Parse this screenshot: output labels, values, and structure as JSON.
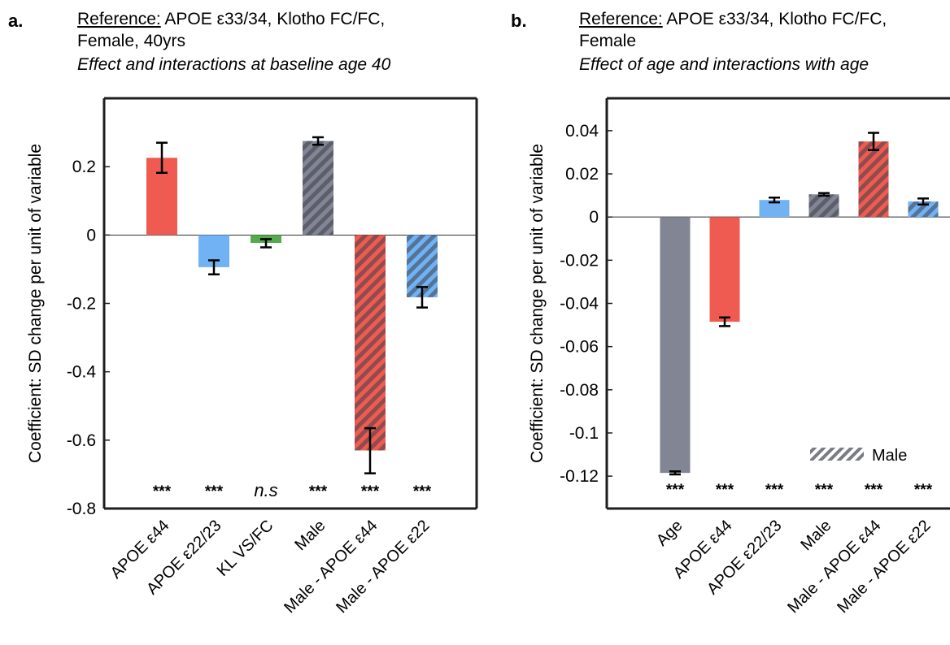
{
  "chart_data": [
    {
      "type": "bar",
      "panel_label": "a.",
      "reference_key": "Reference:",
      "reference_text_line1": "APOE ε33/34, Klotho FC/FC,",
      "reference_text_line2": "Female, 40yrs",
      "subtitle": "Effect and interactions at baseline age 40",
      "ylabel": "Coefficient: SD change per unit of variable",
      "ylim": [
        -0.8,
        0.4
      ],
      "yticks": [
        0.2,
        0,
        -0.2,
        -0.4,
        -0.6,
        -0.8
      ],
      "ytick_labels": [
        "0.2",
        "0",
        "-0.2",
        "-0.4",
        "-0.6",
        "-0.8"
      ],
      "categories": [
        "APOE ε44",
        "APOE ε22/23",
        "KL VS/FC",
        "Male",
        "Male - APOE ε44",
        "Male - APOE ε22"
      ],
      "values": [
        0.226,
        -0.094,
        -0.023,
        0.275,
        -0.63,
        -0.182
      ],
      "error_low": [
        0.182,
        -0.115,
        -0.036,
        0.264,
        -0.697,
        -0.212
      ],
      "error_high": [
        0.27,
        -0.074,
        -0.012,
        0.286,
        -0.565,
        -0.152
      ],
      "colors": [
        "#ef5b51",
        "#70b2f4",
        "#57a94e",
        "#818594",
        "#ef5b51",
        "#70b2f4"
      ],
      "hatched": [
        false,
        false,
        false,
        true,
        true,
        true
      ],
      "significance": [
        "***",
        "***",
        "n.s",
        "***",
        "***",
        "***"
      ]
    },
    {
      "type": "bar",
      "panel_label": "b.",
      "reference_key": "Reference:",
      "reference_text_line1": "APOE ε33/34, Klotho FC/FC,",
      "reference_text_line2": "Female",
      "subtitle": "Effect of age and interactions with age",
      "ylabel": "Coefficient: SD change per unit of variable",
      "ylim": [
        -0.135,
        0.055
      ],
      "yticks": [
        0.04,
        0.02,
        0,
        -0.02,
        -0.04,
        -0.06,
        -0.08,
        -0.1,
        -0.12
      ],
      "ytick_labels": [
        "0.04",
        "0.02",
        "0",
        "-0.02",
        "-0.04",
        "-0.06",
        "-0.08",
        "-0.1",
        "-0.12"
      ],
      "categories": [
        "Age",
        "APOE ε44",
        "APOE ε22/23",
        "Male",
        "Male - APOE ε44",
        "Male - APOE ε22"
      ],
      "values": [
        -0.1185,
        -0.0485,
        0.0079,
        0.0105,
        0.035,
        0.0072
      ],
      "error_low": [
        -0.1192,
        -0.0505,
        0.0068,
        0.0099,
        0.031,
        0.0058
      ],
      "error_high": [
        -0.1178,
        -0.0465,
        0.009,
        0.0111,
        0.039,
        0.0086
      ],
      "colors": [
        "#818594",
        "#ef5b51",
        "#70b2f4",
        "#818594",
        "#ef5b51",
        "#70b2f4"
      ],
      "hatched": [
        false,
        false,
        false,
        true,
        true,
        true
      ],
      "significance": [
        "***",
        "***",
        "***",
        "***",
        "***",
        "***"
      ],
      "legend": {
        "label": "Male",
        "position": "bottom-right"
      }
    }
  ]
}
